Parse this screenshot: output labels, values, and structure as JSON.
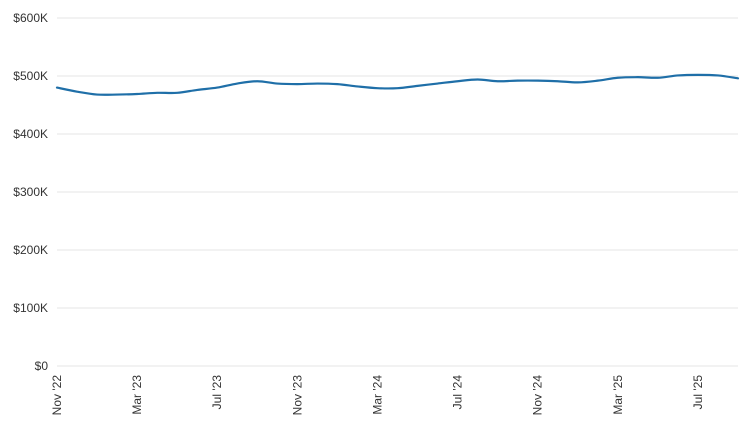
{
  "chart_data": {
    "type": "line",
    "title": "",
    "xlabel": "",
    "ylabel": "",
    "ylim": [
      0,
      600000
    ],
    "y_ticks": [
      {
        "value": 0,
        "label": "$0"
      },
      {
        "value": 100000,
        "label": "$100K"
      },
      {
        "value": 200000,
        "label": "$200K"
      },
      {
        "value": 300000,
        "label": "$300K"
      },
      {
        "value": 400000,
        "label": "$400K"
      },
      {
        "value": 500000,
        "label": "$500K"
      },
      {
        "value": 600000,
        "label": "$600K"
      }
    ],
    "x_ticks": [
      {
        "value": "2022-11",
        "label": "Nov '22"
      },
      {
        "value": "2023-03",
        "label": "Mar '23"
      },
      {
        "value": "2023-07",
        "label": "Jul '23"
      },
      {
        "value": "2023-11",
        "label": "Nov '23"
      },
      {
        "value": "2024-03",
        "label": "Mar '24"
      },
      {
        "value": "2024-07",
        "label": "Jul '24"
      },
      {
        "value": "2024-11",
        "label": "Nov '24"
      },
      {
        "value": "2025-03",
        "label": "Mar '25"
      },
      {
        "value": "2025-07",
        "label": "Jul '25"
      }
    ],
    "x_range": [
      "2022-11",
      "2025-09"
    ],
    "grid": true,
    "legend": "none",
    "colors": {
      "line": "#1f6fa8",
      "grid": "#e6e6e6",
      "text": "#333333"
    },
    "series": [
      {
        "x": [
          "2022-11",
          "2022-12",
          "2023-01",
          "2023-02",
          "2023-03",
          "2023-04",
          "2023-05",
          "2023-06",
          "2023-07",
          "2023-08",
          "2023-09",
          "2023-10",
          "2023-11",
          "2023-12",
          "2024-01",
          "2024-02",
          "2024-03",
          "2024-04",
          "2024-05",
          "2024-06",
          "2024-07",
          "2024-08",
          "2024-09",
          "2024-10",
          "2024-11",
          "2024-12",
          "2025-01",
          "2025-02",
          "2025-03",
          "2025-04",
          "2025-05",
          "2025-06",
          "2025-07",
          "2025-08",
          "2025-09"
        ],
        "values": [
          480000,
          473000,
          468000,
          468000,
          469000,
          471000,
          471000,
          476000,
          480000,
          487000,
          491000,
          487000,
          486000,
          487000,
          486000,
          482000,
          479000,
          479000,
          483000,
          487000,
          491000,
          494000,
          491000,
          492000,
          492000,
          491000,
          489000,
          492000,
          497000,
          498000,
          497000,
          501000,
          502000,
          501000,
          496000
        ]
      }
    ]
  }
}
